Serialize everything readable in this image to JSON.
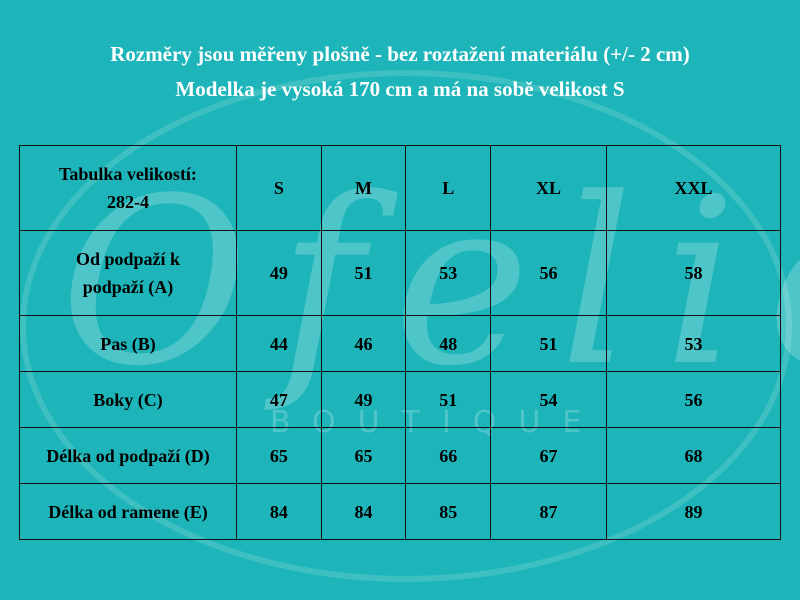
{
  "heading": {
    "line1": "Rozměry jsou měřeny plošně - bez roztažení materiálu (+/- 2 cm)",
    "line2": "Modelka je vysoká 170 cm a má na sobě velikost S"
  },
  "watermark": {
    "logo": "Ofelie",
    "sub": "BOUTIQUE"
  },
  "table": {
    "corner_line1": "Tabulka  velikostí:",
    "corner_line2": "282-4",
    "sizes": [
      "S",
      "M",
      "L",
      "XL",
      "XXL"
    ],
    "rows": [
      {
        "label_line1": "Od podpaží k",
        "label_line2": "podpaží (A)",
        "values": [
          "49",
          "51",
          "53",
          "56",
          "58"
        ]
      },
      {
        "label": "Pas (B)",
        "values": [
          "44",
          "46",
          "48",
          "51",
          "53"
        ]
      },
      {
        "label": "Boky (C)",
        "values": [
          "47",
          "49",
          "51",
          "54",
          "56"
        ]
      },
      {
        "label": "Délka od podpaží (D)",
        "values": [
          "65",
          "65",
          "66",
          "67",
          "68"
        ]
      },
      {
        "label": "Délka od ramene (E)",
        "values": [
          "84",
          "84",
          "85",
          "87",
          "89"
        ]
      }
    ]
  },
  "colors": {
    "background": "#1db5b9",
    "heading_text": "#ffffff",
    "table_text": "#000000"
  }
}
